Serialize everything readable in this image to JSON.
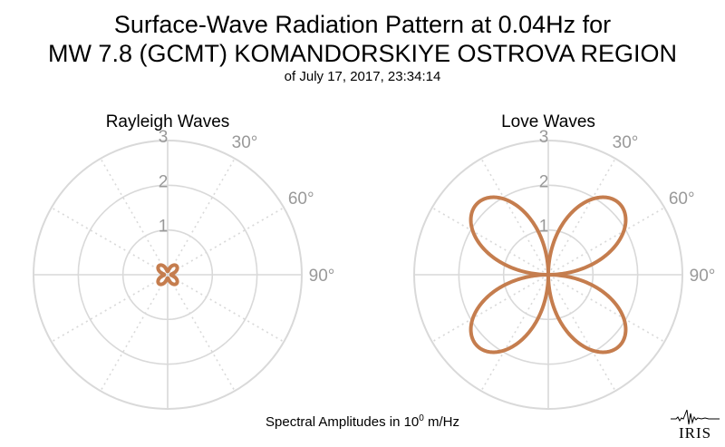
{
  "title_line1": "Surface-Wave Radiation Pattern at 0.04Hz for",
  "title_line2": "MW 7.8 (GCMT) KOMANDORSKIYE OSTROVA REGION",
  "subtitle": "of July 17, 2017, 23:34:14",
  "footer": {
    "text": "Spectral Amplitudes in 10",
    "exponent": "0",
    "unit": " m/Hz"
  },
  "logo_text": "IRIS",
  "colors": {
    "curve": "#c57d4e",
    "grid": "#d9d9d9",
    "tick_label": "#999999"
  },
  "chart_data": [
    {
      "type": "polar",
      "title": "Rayleigh Waves",
      "radial_ticks": [
        "1",
        "2",
        "3"
      ],
      "rlim": [
        0,
        3
      ],
      "angle_labels": [
        "30°",
        "60°",
        "90°"
      ],
      "pattern": {
        "kind": "four-lobe",
        "max_amplitude": 0.28,
        "lobe_directions_deg": [
          45,
          135,
          225,
          315
        ]
      }
    },
    {
      "type": "polar",
      "title": "Love Waves",
      "radial_ticks": [
        "1",
        "2",
        "3"
      ],
      "rlim": [
        0,
        3
      ],
      "angle_labels": [
        "30°",
        "60°",
        "90°"
      ],
      "pattern": {
        "kind": "four-lobe",
        "max_amplitude": 2.25,
        "lobe_directions_deg": [
          45,
          135,
          225,
          315
        ]
      }
    }
  ]
}
